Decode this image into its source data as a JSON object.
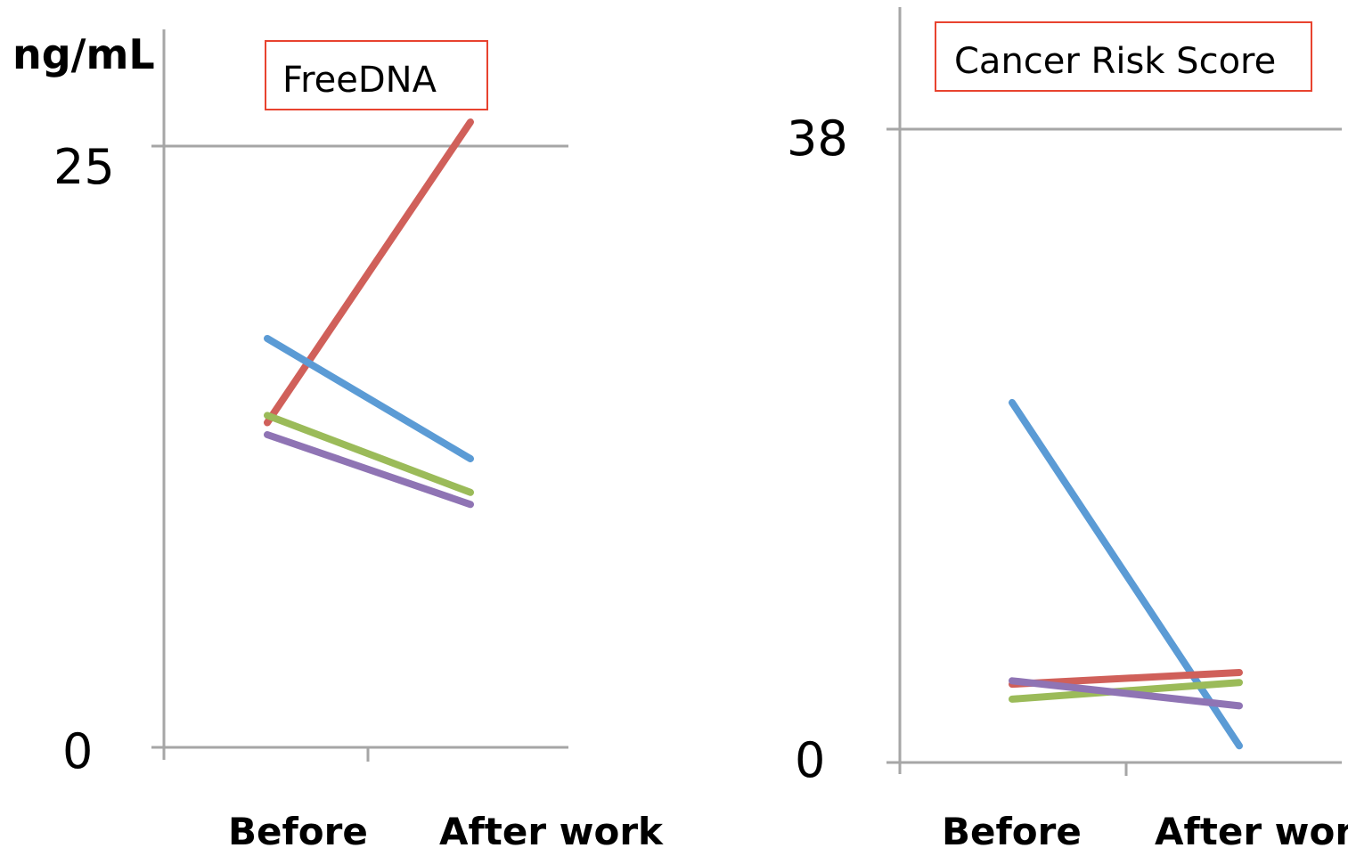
{
  "chart_data": [
    {
      "type": "line",
      "title": "FreeDNA",
      "ylabel": "ng/mL",
      "ylim": [
        0,
        25
      ],
      "ytick_labels": [
        "0",
        "25"
      ],
      "categories": [
        "Before",
        "After work"
      ],
      "grid": "horizontal at max",
      "series": [
        {
          "values": [
            13.5,
            26.0
          ],
          "color": "#d0605a"
        },
        {
          "values": [
            17.0,
            12.0
          ],
          "color": "#5b9bd5"
        },
        {
          "values": [
            13.8,
            10.6
          ],
          "color": "#9bbb59"
        },
        {
          "values": [
            13.0,
            10.1
          ],
          "color": "#8f74b4"
        }
      ]
    },
    {
      "type": "line",
      "title": "Cancer Risk Score",
      "ylabel": "",
      "ylim": [
        0,
        38
      ],
      "ytick_labels": [
        "0",
        "38"
      ],
      "categories": [
        "Before",
        "After work"
      ],
      "grid": "horizontal at max",
      "series": [
        {
          "values": [
            21.6,
            1.0
          ],
          "color": "#5b9bd5"
        },
        {
          "values": [
            4.7,
            5.4
          ],
          "color": "#d0605a"
        },
        {
          "values": [
            3.8,
            4.8
          ],
          "color": "#9bbb59"
        },
        {
          "values": [
            4.9,
            3.4
          ],
          "color": "#8f74b4"
        }
      ]
    }
  ]
}
